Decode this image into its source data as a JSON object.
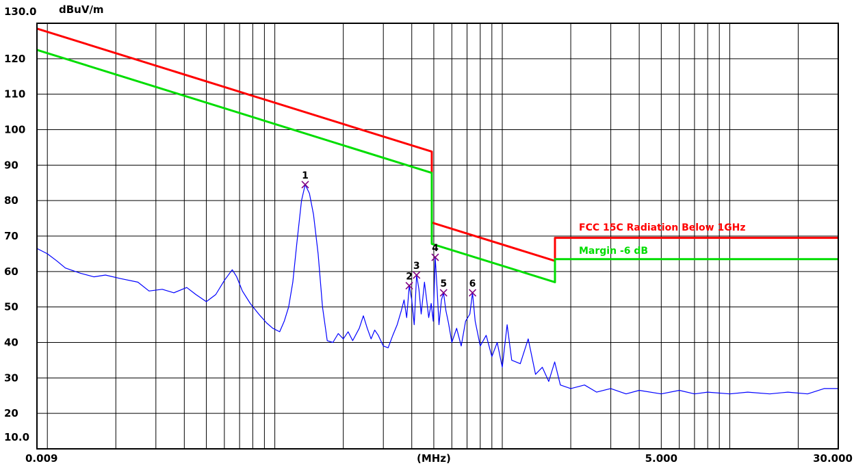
{
  "chart_data": {
    "type": "line",
    "title": "",
    "ylabel": "dBuV/m",
    "xlabel": "(MHz)",
    "x_scale": "log",
    "xlim": [
      0.009,
      30.0
    ],
    "ylim": [
      10,
      130
    ],
    "grid": true,
    "x_tick_labels": [
      {
        "value": 0.009,
        "label": "0.009"
      },
      {
        "value": 0.5,
        "label": "(MHz)"
      },
      {
        "value": 5.0,
        "label": "5.000"
      },
      {
        "value": 30.0,
        "label": "30.000"
      }
    ],
    "y_tick_labels": [
      {
        "value": 130,
        "label": "130.0"
      },
      {
        "value": 120,
        "label": "120"
      },
      {
        "value": 110,
        "label": "110"
      },
      {
        "value": 100,
        "label": "100"
      },
      {
        "value": 90,
        "label": "90"
      },
      {
        "value": 80,
        "label": "80"
      },
      {
        "value": 70,
        "label": "70"
      },
      {
        "value": 60,
        "label": "60"
      },
      {
        "value": 50,
        "label": "50"
      },
      {
        "value": 40,
        "label": "40"
      },
      {
        "value": 30,
        "label": "30"
      },
      {
        "value": 20,
        "label": "20"
      },
      {
        "value": 10,
        "label": "10.0"
      }
    ],
    "series": [
      {
        "name": "FCC  15C Radiation Below 1GHz",
        "color": "#ff0000",
        "points": [
          [
            0.009,
            128.5
          ],
          [
            0.49,
            93.8
          ],
          [
            0.49,
            73.8
          ],
          [
            1.705,
            63.0
          ],
          [
            1.705,
            69.5
          ],
          [
            30.0,
            69.5
          ]
        ]
      },
      {
        "name": "Margin -6 dB",
        "color": "#00dd00",
        "points": [
          [
            0.009,
            122.5
          ],
          [
            0.49,
            87.8
          ],
          [
            0.49,
            67.8
          ],
          [
            1.705,
            57.0
          ],
          [
            1.705,
            63.5
          ],
          [
            30.0,
            63.5
          ]
        ]
      },
      {
        "name": "",
        "color": "#0000ff",
        "points": [
          [
            0.009,
            66.5
          ],
          [
            0.01,
            65.0
          ],
          [
            0.011,
            63.0
          ],
          [
            0.012,
            61.0
          ],
          [
            0.014,
            59.5
          ],
          [
            0.016,
            58.5
          ],
          [
            0.018,
            59.0
          ],
          [
            0.021,
            58.0
          ],
          [
            0.025,
            57.0
          ],
          [
            0.028,
            54.5
          ],
          [
            0.032,
            55.0
          ],
          [
            0.036,
            54.0
          ],
          [
            0.041,
            55.5
          ],
          [
            0.045,
            53.5
          ],
          [
            0.05,
            51.5
          ],
          [
            0.055,
            53.5
          ],
          [
            0.06,
            57.5
          ],
          [
            0.065,
            60.5
          ],
          [
            0.068,
            58.5
          ],
          [
            0.072,
            54.5
          ],
          [
            0.078,
            51.0
          ],
          [
            0.085,
            48.0
          ],
          [
            0.092,
            45.5
          ],
          [
            0.098,
            44.0
          ],
          [
            0.105,
            43.0
          ],
          [
            0.11,
            46.0
          ],
          [
            0.115,
            50.0
          ],
          [
            0.12,
            57.0
          ],
          [
            0.125,
            68.0
          ],
          [
            0.131,
            80.0
          ],
          [
            0.136,
            84.5
          ],
          [
            0.142,
            82.0
          ],
          [
            0.148,
            76.0
          ],
          [
            0.155,
            65.0
          ],
          [
            0.162,
            50.0
          ],
          [
            0.17,
            40.5
          ],
          [
            0.18,
            40.0
          ],
          [
            0.19,
            42.5
          ],
          [
            0.2,
            41.0
          ],
          [
            0.21,
            43.0
          ],
          [
            0.22,
            40.5
          ],
          [
            0.235,
            44.0
          ],
          [
            0.245,
            47.5
          ],
          [
            0.255,
            44.0
          ],
          [
            0.265,
            41.0
          ],
          [
            0.275,
            43.5
          ],
          [
            0.285,
            42.0
          ],
          [
            0.3,
            39.0
          ],
          [
            0.315,
            38.5
          ],
          [
            0.33,
            42.0
          ],
          [
            0.345,
            45.0
          ],
          [
            0.36,
            49.0
          ],
          [
            0.37,
            52.0
          ],
          [
            0.38,
            47.0
          ],
          [
            0.39,
            56.0
          ],
          [
            0.4,
            52.0
          ],
          [
            0.41,
            45.0
          ],
          [
            0.42,
            59.0
          ],
          [
            0.43,
            55.0
          ],
          [
            0.44,
            48.0
          ],
          [
            0.455,
            57.0
          ],
          [
            0.465,
            52.0
          ],
          [
            0.475,
            47.0
          ],
          [
            0.487,
            51.0
          ],
          [
            0.497,
            46.0
          ],
          [
            0.507,
            64.0
          ],
          [
            0.517,
            55.0
          ],
          [
            0.527,
            45.0
          ],
          [
            0.54,
            52.0
          ],
          [
            0.552,
            54.0
          ],
          [
            0.565,
            49.0
          ],
          [
            0.58,
            45.5
          ],
          [
            0.6,
            40.0
          ],
          [
            0.63,
            44.0
          ],
          [
            0.66,
            39.0
          ],
          [
            0.69,
            46.0
          ],
          [
            0.72,
            48.0
          ],
          [
            0.74,
            54.0
          ],
          [
            0.76,
            46.0
          ],
          [
            0.8,
            39.0
          ],
          [
            0.85,
            42.0
          ],
          [
            0.9,
            36.0
          ],
          [
            0.95,
            40.0
          ],
          [
            1.0,
            33.0
          ],
          [
            1.05,
            45.0
          ],
          [
            1.1,
            35.0
          ],
          [
            1.2,
            34.0
          ],
          [
            1.3,
            41.0
          ],
          [
            1.4,
            31.0
          ],
          [
            1.5,
            33.0
          ],
          [
            1.6,
            29.0
          ],
          [
            1.7,
            34.5
          ],
          [
            1.8,
            28.0
          ],
          [
            2.0,
            27.0
          ],
          [
            2.3,
            28.0
          ],
          [
            2.6,
            26.0
          ],
          [
            3.0,
            27.0
          ],
          [
            3.5,
            25.5
          ],
          [
            4.0,
            26.5
          ],
          [
            5.0,
            25.5
          ],
          [
            6.0,
            26.5
          ],
          [
            7.0,
            25.5
          ],
          [
            8.0,
            26.0
          ],
          [
            10.0,
            25.5
          ],
          [
            12.0,
            26.0
          ],
          [
            15.0,
            25.5
          ],
          [
            18.0,
            26.0
          ],
          [
            22.0,
            25.5
          ],
          [
            26.0,
            27.0
          ],
          [
            30.0,
            27.0
          ]
        ]
      }
    ],
    "markers": [
      {
        "label": "1",
        "x": 0.136,
        "y": 84.5
      },
      {
        "label": "2",
        "x": 0.39,
        "y": 56.0
      },
      {
        "label": "3",
        "x": 0.42,
        "y": 59.0
      },
      {
        "label": "4",
        "x": 0.507,
        "y": 64.0
      },
      {
        "label": "5",
        "x": 0.552,
        "y": 54.0
      },
      {
        "label": "6",
        "x": 0.74,
        "y": 54.0
      }
    ],
    "legend": [
      {
        "text": "FCC  15C Radiation Below 1GHz",
        "color": "#ff0000"
      },
      {
        "text": "Margin -6 dB",
        "color": "#00dd00"
      }
    ],
    "legend_position": "right"
  }
}
